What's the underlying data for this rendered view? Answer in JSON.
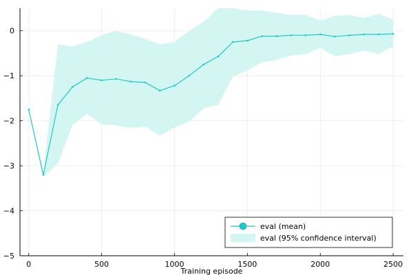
{
  "chart_data": {
    "type": "line",
    "title": "",
    "xlabel": "Training episode",
    "ylabel": "",
    "xlim": [
      -60,
      2570
    ],
    "ylim": [
      -5,
      0.5
    ],
    "xticks": [
      0,
      500,
      1000,
      1500,
      2000,
      2500
    ],
    "yticks": [
      -5,
      -4,
      -3,
      -2,
      -1,
      0
    ],
    "grid": true,
    "legend_position": "bottom-right",
    "colors": {
      "series": "#1ec8c8",
      "band": "#d3f6f3"
    },
    "x": [
      0,
      100,
      200,
      300,
      400,
      500,
      600,
      700,
      800,
      900,
      1000,
      1100,
      1200,
      1300,
      1400,
      1500,
      1600,
      1700,
      1800,
      1900,
      2000,
      2100,
      2200,
      2300,
      2400,
      2500
    ],
    "series": [
      {
        "name": "eval (mean)",
        "values": [
          -1.75,
          -3.2,
          -1.65,
          -1.25,
          -1.05,
          -1.1,
          -1.07,
          -1.13,
          -1.15,
          -1.33,
          -1.22,
          -1.0,
          -0.75,
          -0.57,
          -0.25,
          -0.22,
          -0.12,
          -0.12,
          -0.1,
          -0.1,
          -0.08,
          -0.13,
          -0.1,
          -0.08,
          -0.08,
          -0.07
        ]
      }
    ],
    "band": {
      "name": "eval (95% confidence interval)",
      "lower": [
        -1.75,
        -3.25,
        -2.95,
        -2.1,
        -1.85,
        -2.08,
        -2.1,
        -2.16,
        -2.13,
        -2.33,
        -2.15,
        -2.02,
        -1.72,
        -1.65,
        -1.02,
        -0.88,
        -0.7,
        -0.65,
        -0.55,
        -0.52,
        -0.38,
        -0.57,
        -0.52,
        -0.44,
        -0.52,
        -0.35
      ],
      "upper": [
        -1.75,
        -3.15,
        -0.3,
        -0.35,
        -0.25,
        -0.1,
        0.0,
        -0.08,
        -0.18,
        -0.3,
        -0.25,
        0.0,
        0.2,
        0.5,
        0.5,
        0.45,
        0.45,
        0.4,
        0.35,
        0.35,
        0.22,
        0.33,
        0.35,
        0.28,
        0.38,
        0.25
      ]
    }
  }
}
